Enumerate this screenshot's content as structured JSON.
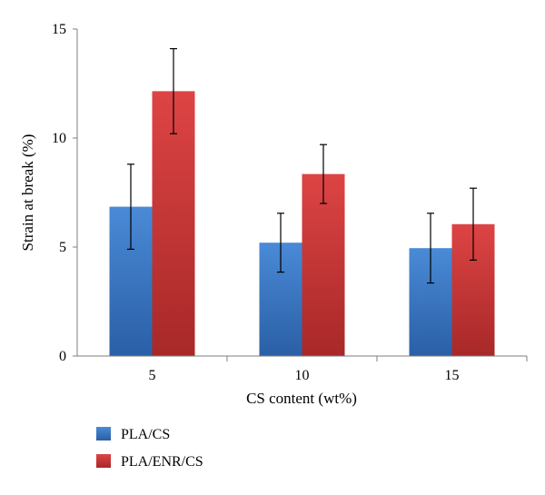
{
  "chart_data": {
    "type": "bar",
    "title": "",
    "xlabel": "CS content (wt%)",
    "ylabel": "Strain at break (%)",
    "categories": [
      "5",
      "10",
      "15"
    ],
    "ylim": [
      0,
      15
    ],
    "yticks": [
      "0",
      "5",
      "10",
      "15"
    ],
    "grid": false,
    "legend_position": "bottom-left",
    "error_bars": true,
    "series": [
      {
        "name": "PLA/CS",
        "color": "#3b78c8",
        "values": [
          6.85,
          5.2,
          4.95
        ],
        "errors": [
          1.95,
          1.35,
          1.6
        ]
      },
      {
        "name": "PLA/ENR/CS",
        "color": "#cc3b3b",
        "values": [
          12.15,
          8.35,
          6.05
        ],
        "errors": [
          1.95,
          1.35,
          1.65
        ]
      }
    ]
  }
}
